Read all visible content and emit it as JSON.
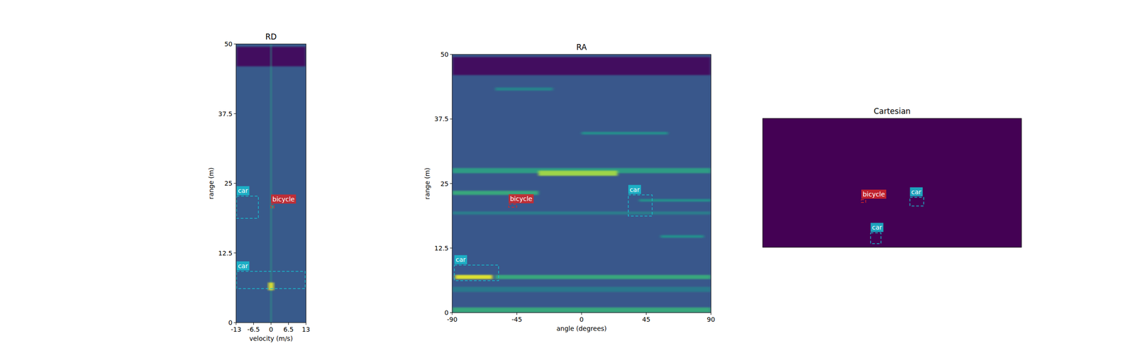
{
  "chart_data": [
    {
      "type": "heatmap",
      "title": "RD",
      "xlabel": "velocity (m/s)",
      "ylabel": "range (m)",
      "xlim": [
        -13,
        13
      ],
      "xticks": [
        -13,
        -6.5,
        0,
        6.5,
        13
      ],
      "ylim": [
        0,
        50
      ],
      "yticks": [
        0,
        12.5,
        25,
        37.5,
        50
      ],
      "clim": [
        0,
        1
      ],
      "background": 0.28,
      "features": [
        {
          "x": [
            -13,
            13
          ],
          "y": [
            46,
            49.5
          ],
          "intensity": 0.05
        },
        {
          "x": [
            -0.25,
            0.25
          ],
          "y": [
            0,
            50
          ],
          "intensity": 0.55
        },
        {
          "x": [
            -1,
            1
          ],
          "y": [
            5.8,
            7.2
          ],
          "intensity": 0.95
        },
        {
          "x": [
            0,
            1
          ],
          "y": [
            20.5,
            21
          ],
          "intensity": 0.6
        }
      ],
      "boxes": [
        {
          "label": "car",
          "color": "#17becf",
          "line_style": "dashed",
          "x": [
            -12.8,
            -4.7
          ],
          "y": [
            18.7,
            22.7
          ]
        },
        {
          "label": "bicycle",
          "color": "#d62728",
          "line_style": "dashed",
          "x": [
            0,
            1.2
          ],
          "y": [
            20.6,
            21.2
          ]
        },
        {
          "label": "car",
          "color": "#17becf",
          "line_style": "dashed",
          "x": [
            -12.8,
            12.7
          ],
          "y": [
            6.1,
            9.2
          ]
        }
      ]
    },
    {
      "type": "heatmap",
      "title": "RA",
      "xlabel": "angle (degrees)",
      "ylabel": "range (m)",
      "xlim": [
        -90,
        90
      ],
      "xticks": [
        -90,
        -45,
        0,
        45,
        90
      ],
      "ylim": [
        0,
        50
      ],
      "yticks": [
        0,
        12.5,
        25,
        37.5,
        50
      ],
      "clim": [
        0,
        1
      ],
      "background": 0.27,
      "features": [
        {
          "x": [
            -90,
            90
          ],
          "y": [
            46,
            49.5
          ],
          "intensity": 0.05
        },
        {
          "x": [
            -90,
            90
          ],
          "y": [
            27,
            28
          ],
          "intensity": 0.55
        },
        {
          "x": [
            -30,
            25
          ],
          "y": [
            26.5,
            27.5
          ],
          "intensity": 0.85
        },
        {
          "x": [
            -90,
            -30
          ],
          "y": [
            22.8,
            23.6
          ],
          "intensity": 0.6
        },
        {
          "x": [
            -60,
            90
          ],
          "y": [
            6.5,
            7.3
          ],
          "intensity": 0.6
        },
        {
          "x": [
            -88,
            -62
          ],
          "y": [
            6.5,
            7.3
          ],
          "intensity": 0.95
        },
        {
          "x": [
            0,
            60
          ],
          "y": [
            34.5,
            35
          ],
          "intensity": 0.5
        },
        {
          "x": [
            55,
            85
          ],
          "y": [
            14.5,
            15
          ],
          "intensity": 0.5
        },
        {
          "x": [
            -60,
            -20
          ],
          "y": [
            43,
            43.6
          ],
          "intensity": 0.45
        },
        {
          "x": [
            40,
            90
          ],
          "y": [
            21.5,
            22
          ],
          "intensity": 0.5
        },
        {
          "x": [
            -90,
            90
          ],
          "y": [
            19,
            19.6
          ],
          "intensity": 0.42
        },
        {
          "x": [
            -90,
            90
          ],
          "y": [
            0,
            1
          ],
          "intensity": 0.6
        },
        {
          "x": [
            -90,
            90
          ],
          "y": [
            4,
            5
          ],
          "intensity": 0.4
        }
      ],
      "boxes": [
        {
          "label": "bicycle",
          "color": "#d62728",
          "line_style": "dashed",
          "x": [
            -50.7,
            -45.1
          ],
          "y": [
            20.4,
            21.0
          ]
        },
        {
          "label": "car",
          "color": "#17becf",
          "line_style": "dashed",
          "x": [
            32.5,
            49.1
          ],
          "y": [
            18.7,
            22.8
          ]
        },
        {
          "label": "car",
          "color": "#17becf",
          "line_style": "dashed",
          "x": [
            -88.5,
            -57.7
          ],
          "y": [
            6.2,
            9.2
          ]
        }
      ]
    },
    {
      "type": "heatmap",
      "title": "Cartesian",
      "tick_labels": false,
      "xlim": [
        -50,
        50
      ],
      "ylim": [
        0,
        50
      ],
      "clim": [
        0,
        1
      ],
      "background": 0,
      "features": [],
      "boxes": [
        {
          "label": "bicycle",
          "color": "#d62728",
          "line_style": "dashed",
          "x": [
            -11.9,
            -10.2
          ],
          "y": [
            17.4,
            18.5
          ]
        },
        {
          "label": "car",
          "color": "#17becf",
          "line_style": "dashed",
          "x": [
            6.9,
            12.2
          ],
          "y": [
            16.0,
            19.4
          ]
        },
        {
          "label": "car",
          "color": "#17becf",
          "line_style": "dashed",
          "x": [
            -8.3,
            -4.3
          ],
          "y": [
            1.4,
            5.6
          ]
        }
      ]
    }
  ]
}
